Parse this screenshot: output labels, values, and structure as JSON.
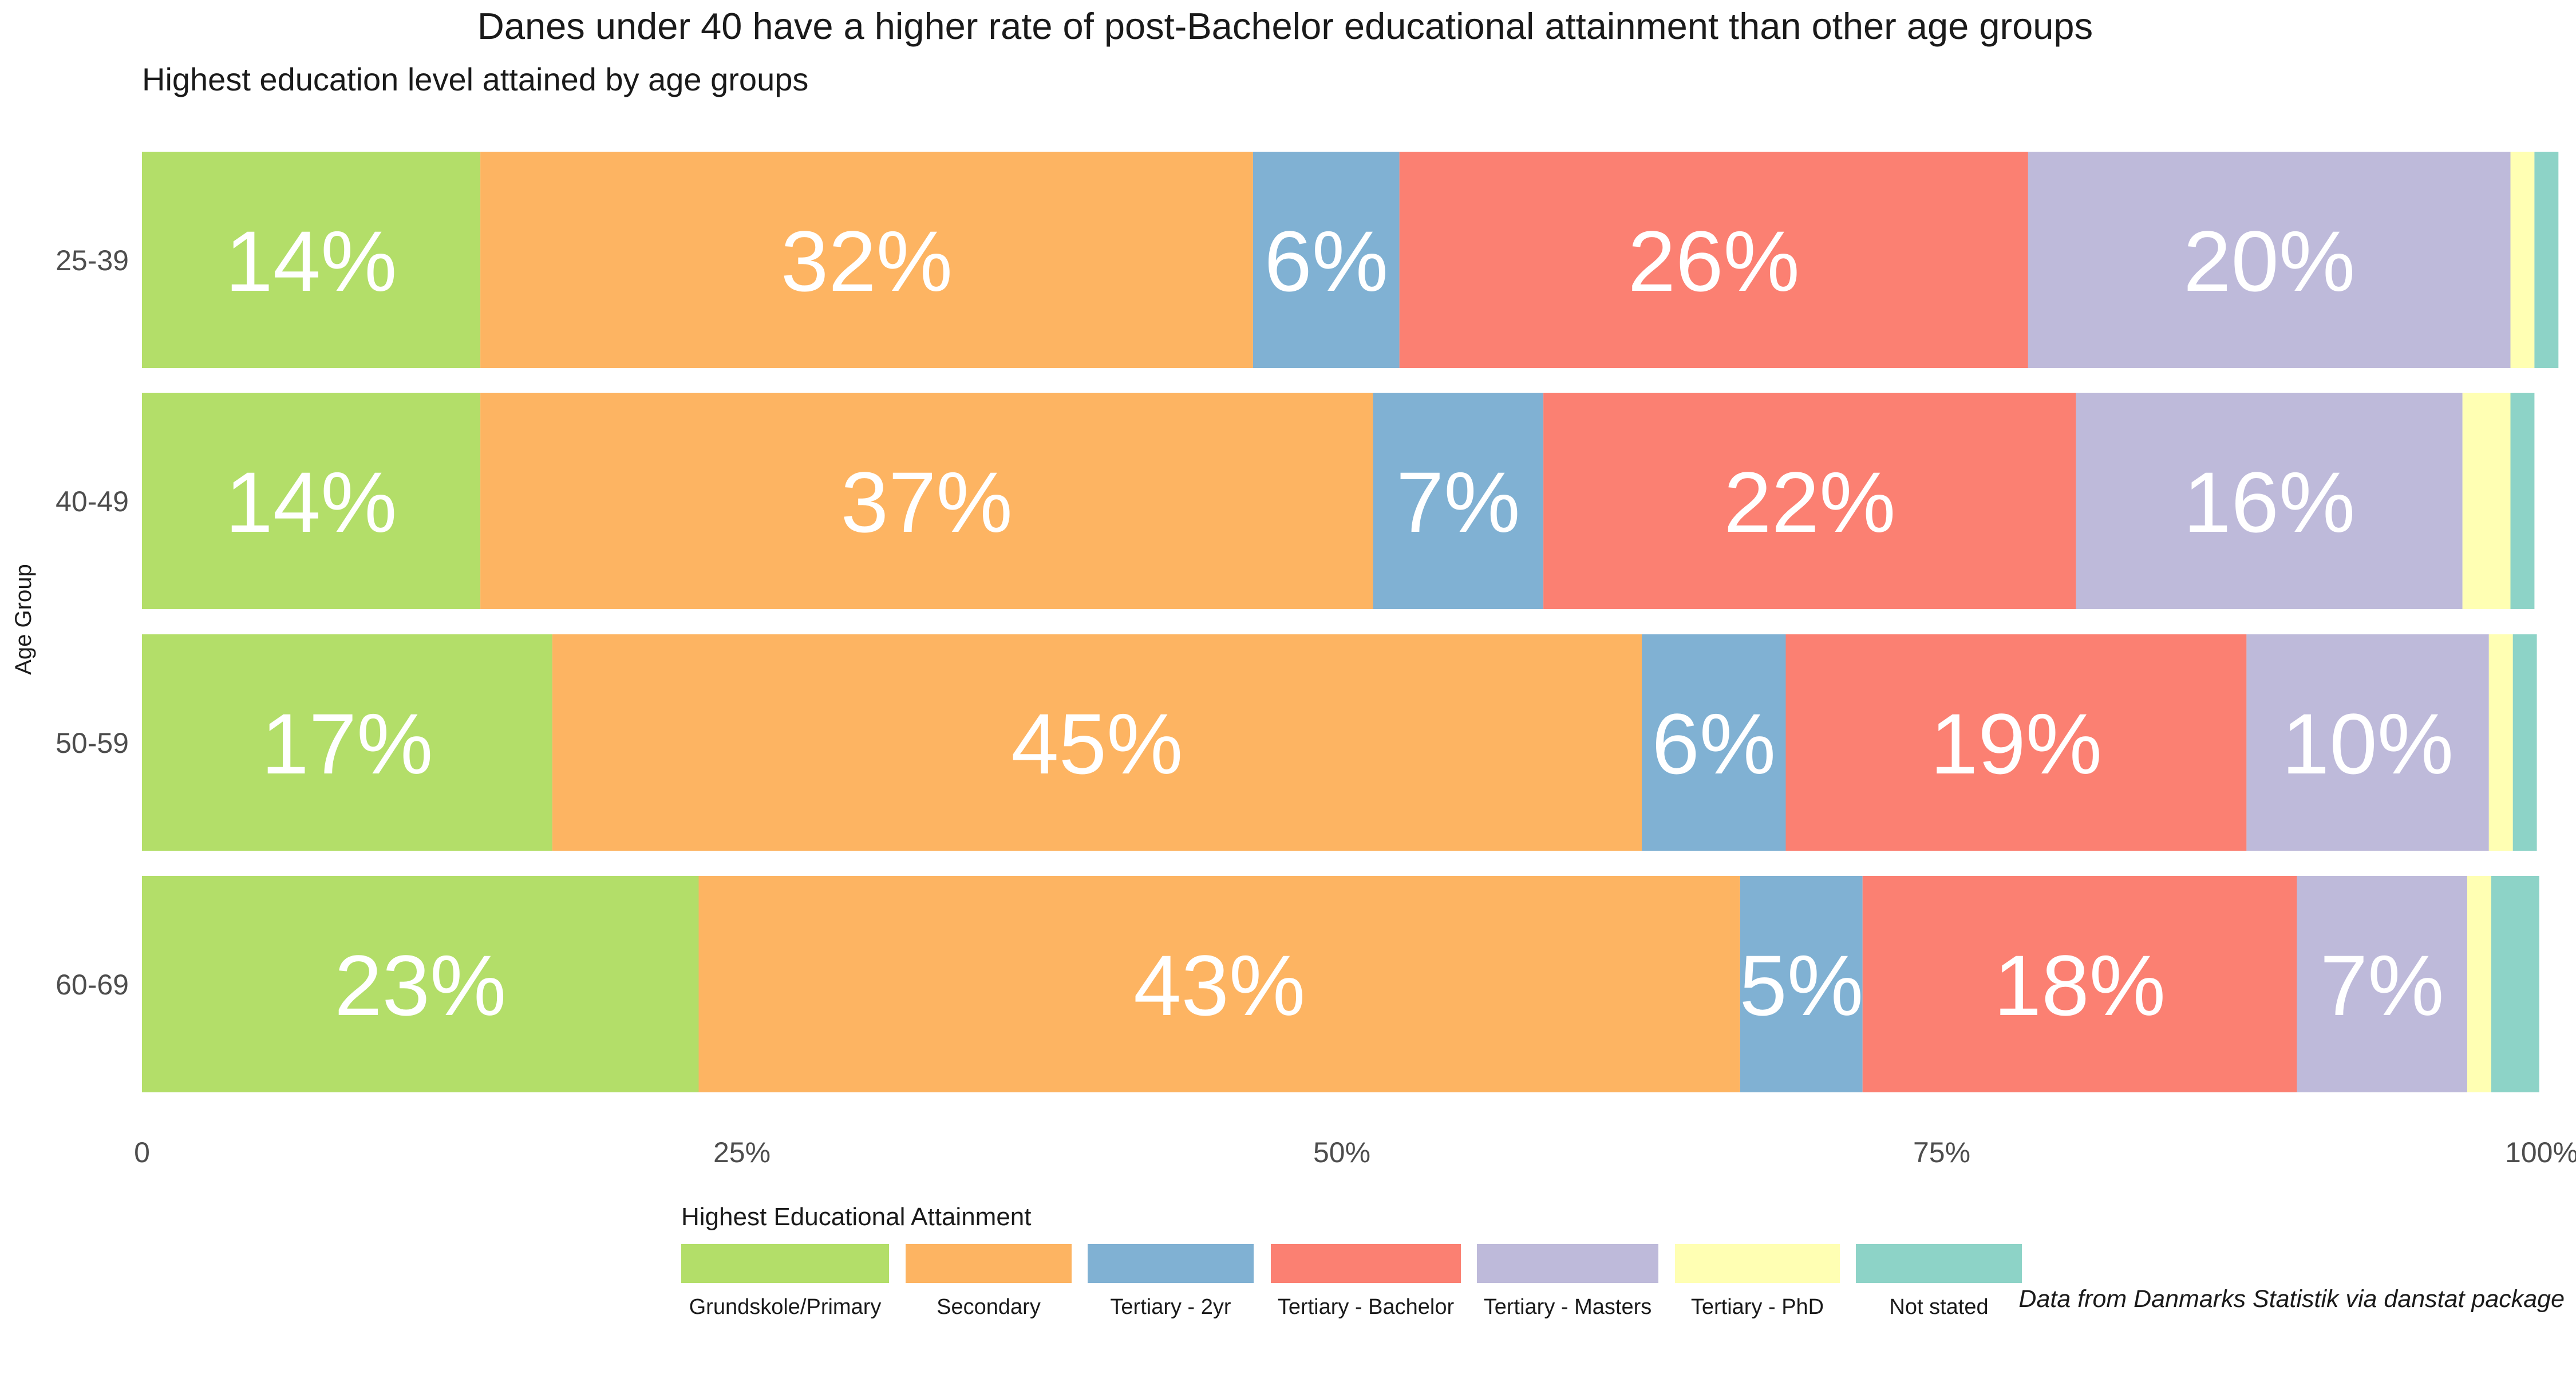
{
  "chart_data": {
    "type": "bar",
    "orientation": "horizontal",
    "stacked": true,
    "title": "Danes under 40 have a higher rate of post-Bachelor educational attainment than other age groups",
    "subtitle": "Highest education level attained by age groups",
    "xlabel": "",
    "ylabel": "Age Group",
    "caption": "Data from Danmarks Statistik via danstat package",
    "xlim": [
      0,
      100
    ],
    "x_ticks": [
      0,
      25,
      50,
      75,
      100
    ],
    "x_tick_labels": [
      "0",
      "25%",
      "50%",
      "75%",
      "100%"
    ],
    "grid": false,
    "categories": [
      "25-39",
      "40-49",
      "50-59",
      "60-69"
    ],
    "legend": {
      "title": "Highest Educational Attainment",
      "placement": "bottom"
    },
    "series": [
      {
        "name": "Grundskole/Primary",
        "color": "#B3DE69",
        "values": [
          14.1,
          14.1,
          17.1,
          23.2
        ],
        "labels": [
          "14%",
          "14%",
          "17%",
          "23%"
        ]
      },
      {
        "name": "Secondary",
        "color": "#FDB462",
        "values": [
          32.2,
          37.2,
          45.4,
          43.4
        ],
        "labels": [
          "32%",
          "37%",
          "45%",
          "43%"
        ]
      },
      {
        "name": "Tertiary - 2yr",
        "color": "#80B1D3",
        "values": [
          6.1,
          7.1,
          6.0,
          5.1
        ],
        "labels": [
          "6%",
          "7%",
          "6%",
          "5%"
        ]
      },
      {
        "name": "Tertiary - Bachelor",
        "color": "#FB8072",
        "values": [
          26.2,
          22.2,
          19.2,
          18.1
        ],
        "labels": [
          "26%",
          "22%",
          "19%",
          "18%"
        ]
      },
      {
        "name": "Tertiary - Masters",
        "color": "#BEBADA",
        "values": [
          20.1,
          16.1,
          10.1,
          7.1
        ],
        "labels": [
          "20%",
          "16%",
          "10%",
          "7%"
        ]
      },
      {
        "name": "Tertiary - PhD",
        "color": "#FFFFB3",
        "values": [
          1.0,
          2.0,
          1.0,
          1.0
        ],
        "labels": [
          "",
          "",
          "",
          ""
        ]
      },
      {
        "name": "Not stated",
        "color": "#8DD3C7",
        "values": [
          1.0,
          1.0,
          1.0,
          2.0
        ],
        "labels": [
          "",
          "",
          "",
          ""
        ]
      }
    ]
  }
}
